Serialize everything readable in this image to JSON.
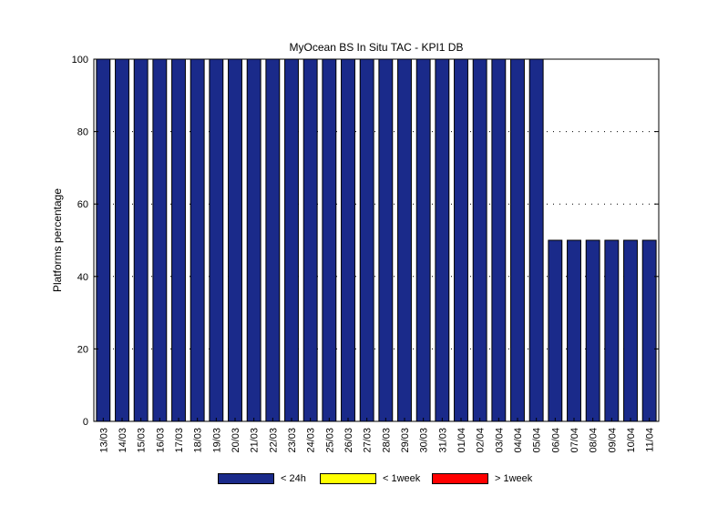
{
  "chart_data": {
    "type": "bar",
    "stacked": true,
    "title": "MyOcean  BS In Situ TAC - KPI1  DB",
    "xlabel": "",
    "ylabel": "Platforms percentage",
    "ylim": [
      0,
      100
    ],
    "yticks": [
      0,
      20,
      40,
      60,
      80,
      100
    ],
    "grid": "dotted horizontal",
    "legend_position": "bottom",
    "categories": [
      "13/03",
      "14/03",
      "15/03",
      "16/03",
      "17/03",
      "18/03",
      "19/03",
      "20/03",
      "21/03",
      "22/03",
      "23/03",
      "24/03",
      "25/03",
      "26/03",
      "27/03",
      "28/03",
      "29/03",
      "30/03",
      "31/03",
      "01/04",
      "02/04",
      "03/04",
      "04/04",
      "05/04",
      "06/04",
      "07/04",
      "08/04",
      "09/04",
      "10/04",
      "11/04"
    ],
    "series": [
      {
        "name": "< 24h",
        "color": "#1a2a8a",
        "values": [
          100,
          100,
          100,
          100,
          100,
          100,
          100,
          100,
          100,
          100,
          100,
          100,
          100,
          100,
          100,
          100,
          100,
          100,
          100,
          100,
          100,
          100,
          100,
          100,
          50,
          50,
          50,
          50,
          50,
          50
        ]
      },
      {
        "name": "< 1week",
        "color": "#ffff00",
        "values": [
          0,
          0,
          0,
          0,
          0,
          0,
          0,
          0,
          0,
          0,
          0,
          0,
          0,
          0,
          0,
          0,
          0,
          0,
          0,
          0,
          0,
          0,
          0,
          0,
          0,
          0,
          0,
          0,
          0,
          0
        ]
      },
      {
        "name": "> 1week",
        "color": "#ff0000",
        "values": [
          0,
          0,
          0,
          0,
          0,
          0,
          0,
          0,
          0,
          0,
          0,
          0,
          0,
          0,
          0,
          0,
          0,
          0,
          0,
          0,
          0,
          0,
          0,
          0,
          0,
          0,
          0,
          0,
          0,
          0
        ]
      }
    ]
  }
}
